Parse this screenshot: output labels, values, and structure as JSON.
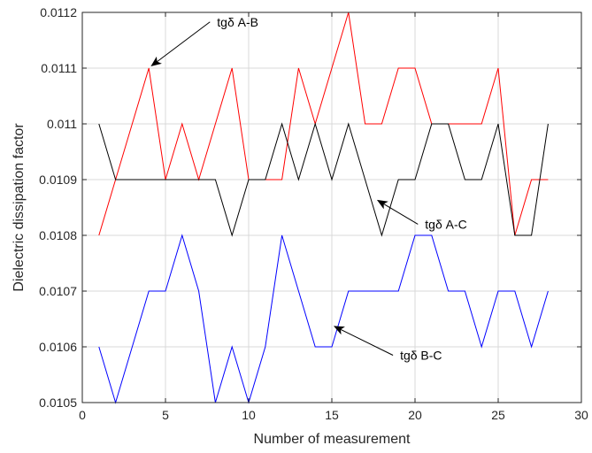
{
  "chart_data": {
    "type": "line",
    "xlabel": "Number of measurement",
    "ylabel": "Dielectric dissipation factor",
    "xlim": [
      0,
      30
    ],
    "ylim": [
      0.0105,
      0.0112
    ],
    "x_ticks": [
      0,
      5,
      10,
      15,
      20,
      25,
      30
    ],
    "y_ticks": [
      0.0105,
      0.0106,
      0.0107,
      0.0108,
      0.0109,
      0.011,
      0.0111,
      0.0112
    ],
    "x_tick_labels": [
      "0",
      "5",
      "10",
      "15",
      "20",
      "25",
      "30"
    ],
    "y_tick_labels": [
      "0.0105",
      "0.0106",
      "0.0107",
      "0.0108",
      "0.0109",
      "0.011",
      "0.0111",
      "0.0112"
    ],
    "grid": true,
    "x": [
      1,
      2,
      3,
      4,
      5,
      6,
      7,
      8,
      9,
      10,
      11,
      12,
      13,
      14,
      15,
      16,
      17,
      18,
      19,
      20,
      21,
      22,
      23,
      24,
      25,
      26,
      27,
      28
    ],
    "series": [
      {
        "color": "#ff0000",
        "values": [
          0.0108,
          0.0109,
          0.011,
          0.0111,
          0.0109,
          0.011,
          0.0109,
          0.011,
          0.0111,
          0.0109,
          0.0109,
          0.0109,
          0.0111,
          0.011,
          0.0111,
          0.0112,
          0.011,
          0.011,
          0.0111,
          0.0111,
          0.011,
          0.011,
          0.011,
          0.011,
          0.0111,
          0.0108,
          0.0109,
          0.0109
        ]
      },
      {
        "color": "#000000",
        "values": [
          0.011,
          0.0109,
          0.0109,
          0.0109,
          0.0109,
          0.0109,
          0.0109,
          0.0109,
          0.0108,
          0.0109,
          0.0109,
          0.011,
          0.0109,
          0.011,
          0.0109,
          0.011,
          0.0109,
          0.0108,
          0.0109,
          0.0109,
          0.011,
          0.011,
          0.0109,
          0.0109,
          0.011,
          0.0108,
          0.0108,
          0.011
        ]
      },
      {
        "color": "#0000ff",
        "values": [
          0.0106,
          0.0105,
          0.0106,
          0.0107,
          0.0107,
          0.0108,
          0.0107,
          0.0105,
          0.0106,
          0.0105,
          0.0106,
          0.0108,
          0.0107,
          0.0106,
          0.0106,
          0.0107,
          0.0107,
          0.0107,
          0.0107,
          0.0108,
          0.0108,
          0.0107,
          0.0107,
          0.0106,
          0.0107,
          0.0107,
          0.0106,
          0.0107
        ]
      }
    ],
    "annotations": [
      {
        "text": "tgδ A-B",
        "arrow_to": [
          4.2,
          0.011105
        ],
        "text_at": [
          8.1,
          0.011175
        ]
      },
      {
        "text": "tgδ A-C",
        "arrow_to": [
          17.8,
          0.010862
        ],
        "text_at": [
          20.6,
          0.010812
        ]
      },
      {
        "text": "tgδ B-C",
        "arrow_to": [
          15.2,
          0.010636
        ],
        "text_at": [
          19.1,
          0.010577
        ]
      }
    ]
  }
}
